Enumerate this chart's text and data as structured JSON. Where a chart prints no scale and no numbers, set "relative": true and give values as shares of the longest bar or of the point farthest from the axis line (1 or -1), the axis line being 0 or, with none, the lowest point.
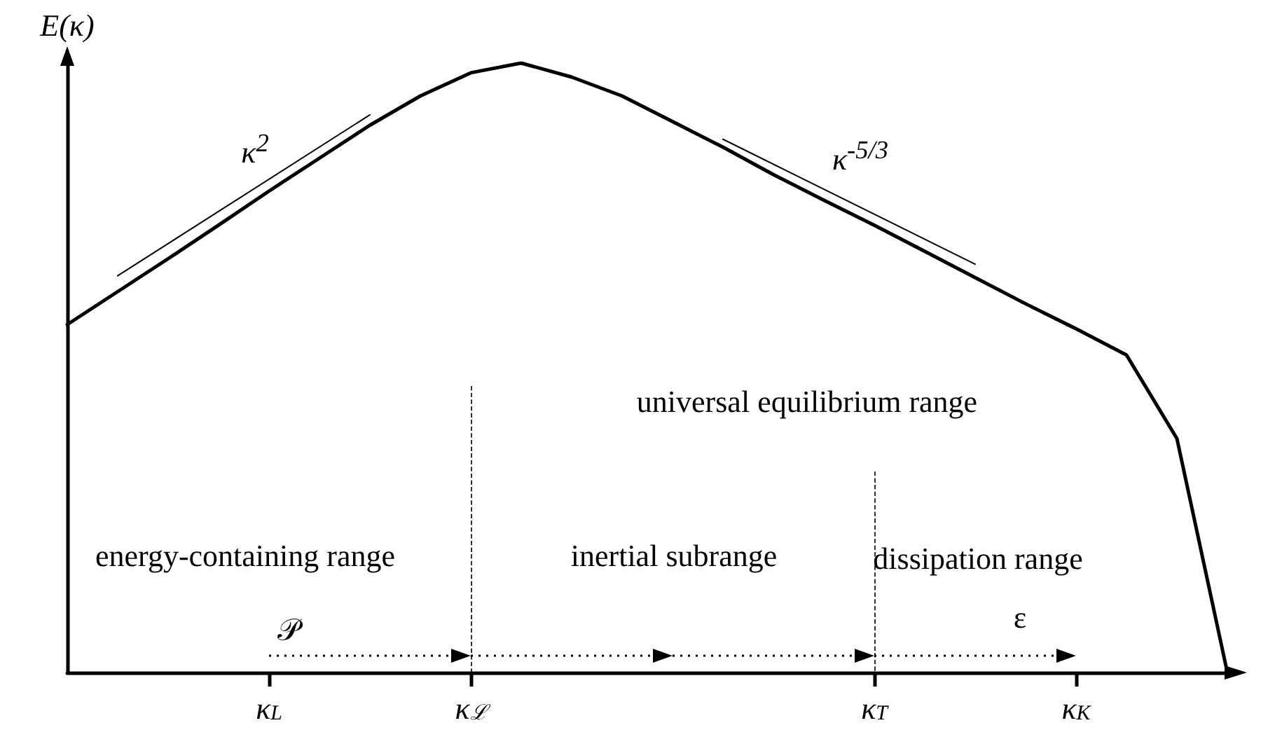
{
  "chart_data": {
    "type": "line",
    "relative": true,
    "ylabel": "E(κ)",
    "categories": [
      null,
      null,
      null,
      null,
      "κ$_{L}$",
      null,
      null,
      null,
      "κ$_{ℒ}$",
      null,
      null,
      null,
      null,
      null,
      null,
      null,
      "κ$_{T}$",
      null,
      null,
      null,
      "κ$_{K}$",
      null,
      null,
      null
    ],
    "series": [
      {
        "color": "#000000",
        "values": [
          0.571,
          0.625,
          0.679,
          0.734,
          0.79,
          0.844,
          0.898,
          0.946,
          0.984,
          1.0,
          0.977,
          0.946,
          0.904,
          0.862,
          0.817,
          0.775,
          0.734,
          0.691,
          0.648,
          0.605,
          0.564,
          0.521,
          0.384,
          0
        ]
      },
      {
        "name": "κ$^{2}$",
        "color": "#000000",
        "values": [
          null,
          0.651,
          null,
          null,
          null,
          null,
          0.915,
          null,
          null,
          null,
          null,
          null,
          null,
          null,
          null,
          null,
          null,
          null,
          null,
          null,
          null,
          null,
          null,
          null
        ]
      },
      {
        "name": "κ$^{-5/3}$",
        "color": "#000000",
        "values": [
          null,
          null,
          null,
          null,
          null,
          null,
          null,
          null,
          null,
          null,
          null,
          null,
          null,
          0.875,
          null,
          null,
          null,
          null,
          0.67,
          null,
          null,
          null,
          null,
          null
        ]
      }
    ],
    "ref_lines": [
      {
        "axis": "x",
        "value": "κ$_{ℒ}$",
        "line_style": "dashed"
      },
      {
        "axis": "x",
        "value": "κ$_{T}$",
        "line_style": "dashed"
      }
    ],
    "annotations": [
      "universal equilibrium range",
      "energy-containing range",
      "inertial subrange",
      "dissipation range",
      "𝒫",
      "ε"
    ],
    "legend": false,
    "grid": false,
    "marker": "none",
    "line_style": "solid"
  }
}
